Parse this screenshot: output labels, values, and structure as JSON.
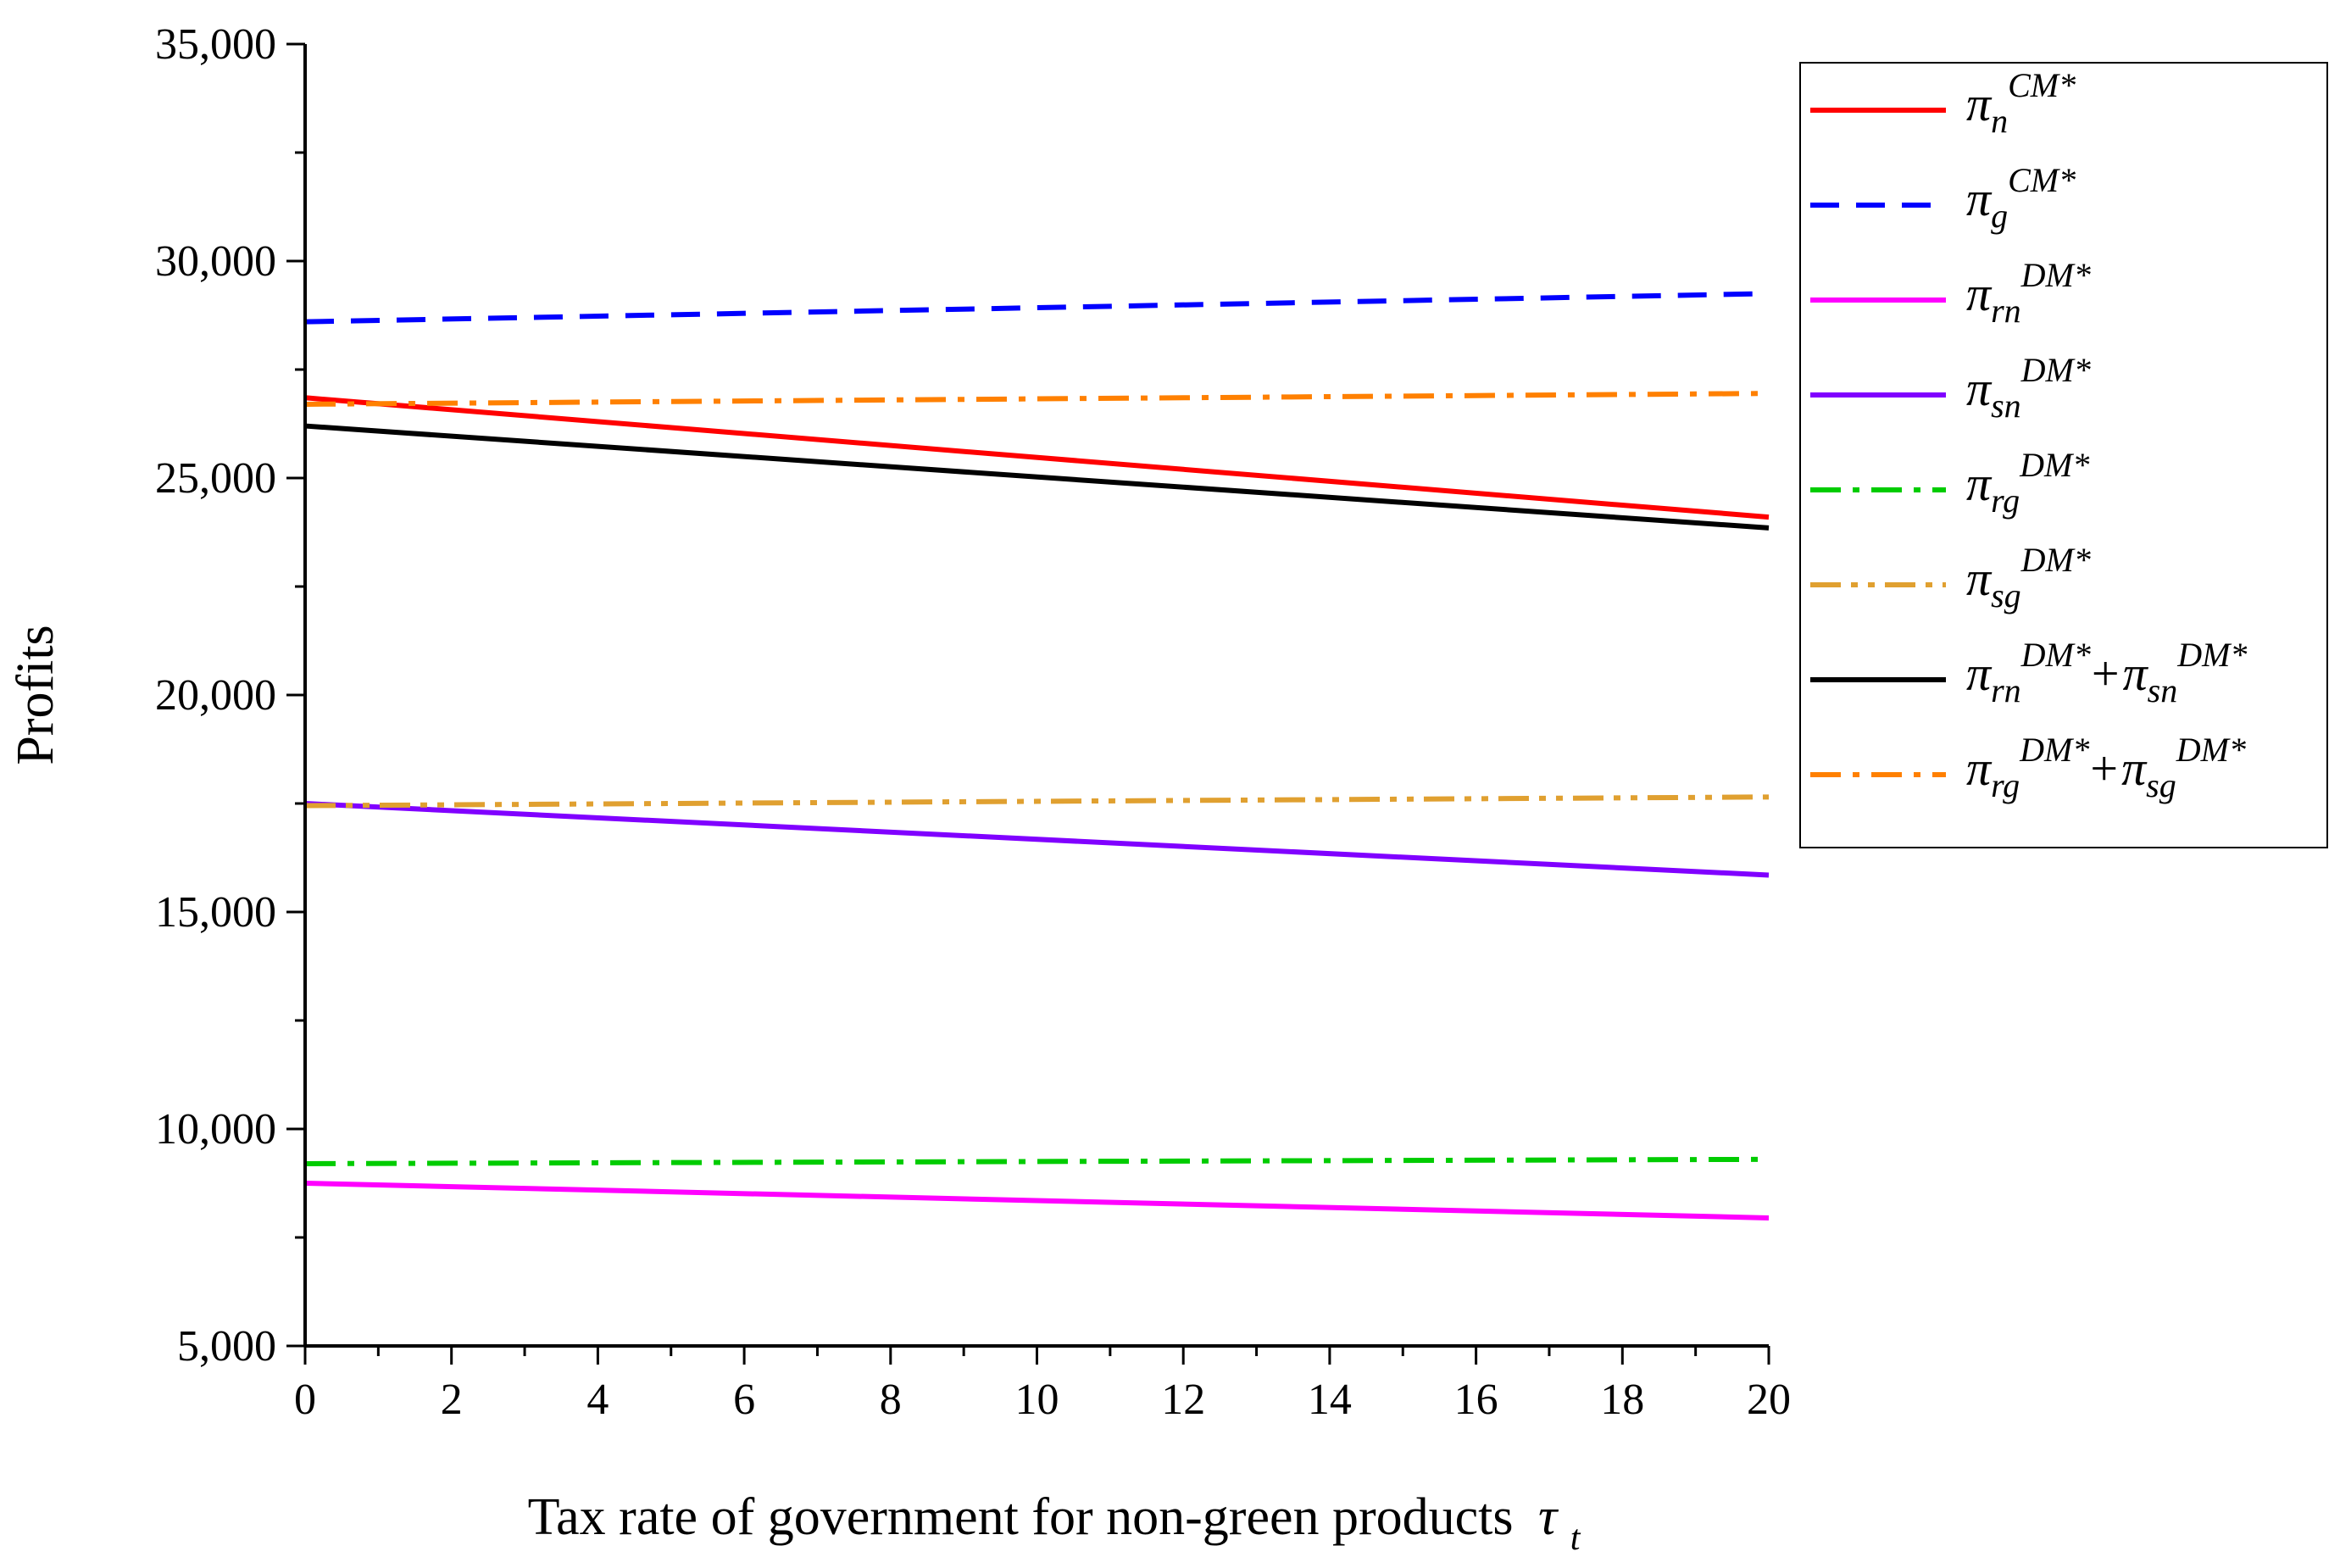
{
  "chart_data": {
    "type": "line",
    "title": "",
    "xlabel": "Tax rate of government for non-green products",
    "xlabel_symbol": "τ",
    "xlabel_symbol_sub": "t",
    "ylabel": "Profits",
    "xlim": [
      0,
      20
    ],
    "ylim": [
      5000,
      35000
    ],
    "x_ticks": [
      0,
      2,
      4,
      6,
      8,
      10,
      12,
      14,
      16,
      18,
      20
    ],
    "x_tick_labels": [
      "0",
      "2",
      "4",
      "6",
      "8",
      "10",
      "12",
      "14",
      "16",
      "18",
      "20"
    ],
    "y_ticks": [
      5000,
      10000,
      15000,
      20000,
      25000,
      30000,
      35000
    ],
    "y_tick_labels": [
      "5,000",
      "10,000",
      "15,000",
      "20,000",
      "25,000",
      "30,000",
      "35,000"
    ],
    "grid": false,
    "legend_position": "top-right, outside plot",
    "series": [
      {
        "key": "pi_n_CM",
        "sym": "π",
        "sub": "n",
        "sup": "CM*",
        "sym2": "",
        "sub2": "",
        "sup2": "",
        "color": "#ff0000",
        "dash": "solid",
        "x": [
          0,
          20
        ],
        "values": [
          26850,
          24100
        ]
      },
      {
        "key": "pi_g_CM",
        "sym": "π",
        "sub": "g",
        "sup": "CM*",
        "sym2": "",
        "sub2": "",
        "sup2": "",
        "color": "#0000ff",
        "dash": "dash",
        "x": [
          0,
          20
        ],
        "values": [
          28600,
          29250
        ]
      },
      {
        "key": "pi_rn_DM",
        "sym": "π",
        "sub": "rn",
        "sup": "DM*",
        "sym2": "",
        "sub2": "",
        "sup2": "",
        "color": "#ff00ff",
        "dash": "solid",
        "x": [
          0,
          20
        ],
        "values": [
          8750,
          7950
        ]
      },
      {
        "key": "pi_sn_DM",
        "sym": "π",
        "sub": "sn",
        "sup": "DM*",
        "sym2": "",
        "sub2": "",
        "sup2": "",
        "color": "#8000ff",
        "dash": "solid",
        "x": [
          0,
          20
        ],
        "values": [
          17500,
          15850
        ]
      },
      {
        "key": "pi_rg_DM",
        "sym": "π",
        "sub": "rg",
        "sup": "DM*",
        "sym2": "",
        "sub2": "",
        "sup2": "",
        "color": "#00cc00",
        "dash": "dashdot",
        "x": [
          0,
          20
        ],
        "values": [
          9200,
          9300
        ]
      },
      {
        "key": "pi_sg_DM",
        "sym": "π",
        "sub": "sg",
        "sup": "DM*",
        "sym2": "",
        "sub2": "",
        "sup2": "",
        "color": "#e0a030",
        "dash": "dashdotdot",
        "x": [
          0,
          20
        ],
        "values": [
          17450,
          17650
        ]
      },
      {
        "key": "pi_rn_sn_DM",
        "sym": "π",
        "sub": "rn",
        "sup": "DM*",
        "sym2": "π",
        "sub2": "sn",
        "sup2": "DM*",
        "color": "#000000",
        "dash": "solid",
        "x": [
          0,
          20
        ],
        "values": [
          26200,
          23850
        ]
      },
      {
        "key": "pi_rg_sg_DM",
        "sym": "π",
        "sub": "rg",
        "sup": "DM*",
        "sym2": "π",
        "sub2": "sg",
        "sup2": "DM*",
        "color": "#ff8000",
        "dash": "dashdot",
        "x": [
          0,
          20
        ],
        "values": [
          26700,
          26950
        ]
      }
    ]
  }
}
